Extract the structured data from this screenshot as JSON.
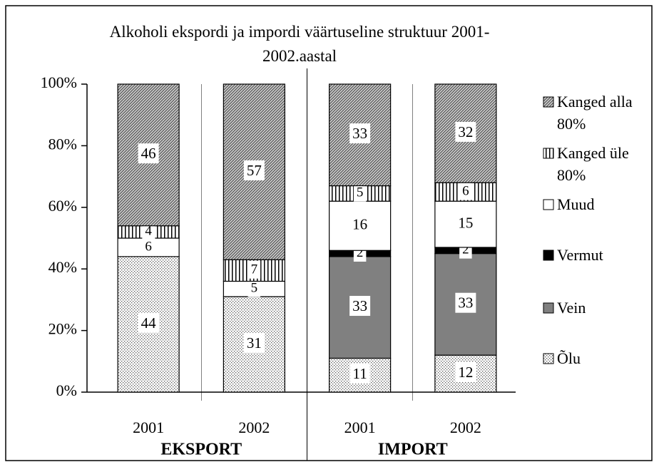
{
  "chart_data": {
    "type": "stacked_bar",
    "title": "Alkoholi ekspordi ja impordi väärtuseline struktuur 2001-2002.aastal",
    "categories": [
      "2001",
      "2002",
      "2001",
      "2002"
    ],
    "groups": [
      {
        "label": "EKSPORT",
        "size": 2
      },
      {
        "label": "IMPORT",
        "size": 2
      }
    ],
    "ylim": [
      0,
      100
    ],
    "yticks": [
      {
        "value": 0,
        "label": "0%"
      },
      {
        "value": 20,
        "label": "20%"
      },
      {
        "value": 40,
        "label": "40%"
      },
      {
        "value": 60,
        "label": "60%"
      },
      {
        "value": 80,
        "label": "80%"
      },
      {
        "value": 100,
        "label": "100%"
      }
    ],
    "series": [
      {
        "name": "Õlu",
        "color": "#ffffff",
        "pattern": "dots",
        "values": [
          44,
          31,
          11,
          12
        ]
      },
      {
        "name": "Vein",
        "color": "#808080",
        "pattern": null,
        "values": [
          null,
          null,
          33,
          33
        ]
      },
      {
        "name": "Vermut",
        "color": "#000000",
        "pattern": null,
        "values": [
          null,
          null,
          2,
          2
        ]
      },
      {
        "name": "Muud",
        "color": "#ffffff",
        "pattern": null,
        "values": [
          6,
          5,
          16,
          15
        ]
      },
      {
        "name": "Kanged üle 80%",
        "color": "#ffffff",
        "pattern": "vertical",
        "values": [
          4,
          7,
          5,
          6
        ]
      },
      {
        "name": "Kanged alla 80%",
        "color": "#ffffff",
        "pattern": "diagonal",
        "values": [
          46,
          57,
          33,
          32
        ]
      }
    ]
  }
}
